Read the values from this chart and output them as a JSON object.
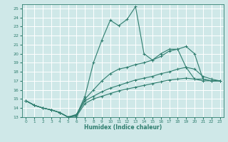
{
  "xlabel": "Humidex (Indice chaleur)",
  "xlim": [
    -0.5,
    23.5
  ],
  "ylim": [
    13,
    25.5
  ],
  "xticks": [
    0,
    1,
    2,
    3,
    4,
    5,
    6,
    7,
    8,
    9,
    10,
    11,
    12,
    13,
    14,
    15,
    16,
    17,
    18,
    19,
    20,
    21,
    22,
    23
  ],
  "yticks": [
    13,
    14,
    15,
    16,
    17,
    18,
    19,
    20,
    21,
    22,
    23,
    24,
    25
  ],
  "background_color": "#cfe8e8",
  "grid_color": "#b0d0d0",
  "line_color": "#2e7d6e",
  "lines": [
    {
      "x": [
        0,
        1,
        2,
        3,
        4,
        5,
        6,
        7,
        8,
        9,
        10,
        11,
        12,
        13,
        14,
        15,
        16,
        17,
        18,
        19,
        20,
        21,
        22,
        23
      ],
      "y": [
        14.8,
        14.3,
        14.0,
        13.8,
        13.5,
        13.0,
        13.2,
        15.3,
        19.0,
        21.5,
        23.7,
        23.1,
        23.8,
        25.2,
        20.0,
        19.3,
        20.0,
        20.5,
        20.5,
        20.8,
        20.0,
        17.2,
        17.0,
        17.0
      ]
    },
    {
      "x": [
        0,
        1,
        2,
        3,
        4,
        5,
        6,
        7,
        8,
        9,
        10,
        11,
        12,
        13,
        14,
        15,
        16,
        17,
        18,
        19,
        20,
        21,
        22,
        23
      ],
      "y": [
        14.8,
        14.3,
        14.0,
        13.8,
        13.5,
        13.0,
        13.3,
        15.0,
        16.0,
        17.0,
        17.8,
        18.3,
        18.5,
        18.8,
        19.0,
        19.3,
        19.7,
        20.3,
        20.5,
        18.5,
        17.2,
        17.2,
        17.0,
        17.0
      ]
    },
    {
      "x": [
        0,
        1,
        2,
        3,
        4,
        5,
        6,
        7,
        8,
        9,
        10,
        11,
        12,
        13,
        14,
        15,
        16,
        17,
        18,
        19,
        20,
        21,
        22,
        23
      ],
      "y": [
        14.8,
        14.3,
        14.0,
        13.8,
        13.5,
        13.0,
        13.2,
        14.8,
        15.3,
        15.8,
        16.2,
        16.5,
        16.8,
        17.1,
        17.3,
        17.5,
        17.8,
        18.0,
        18.3,
        18.5,
        18.3,
        17.5,
        17.2,
        17.0
      ]
    },
    {
      "x": [
        0,
        1,
        2,
        3,
        4,
        5,
        6,
        7,
        8,
        9,
        10,
        11,
        12,
        13,
        14,
        15,
        16,
        17,
        18,
        19,
        20,
        21,
        22,
        23
      ],
      "y": [
        14.8,
        14.3,
        14.0,
        13.8,
        13.5,
        13.0,
        13.1,
        14.5,
        15.0,
        15.3,
        15.6,
        15.9,
        16.1,
        16.3,
        16.5,
        16.7,
        16.9,
        17.1,
        17.2,
        17.3,
        17.2,
        17.0,
        17.0,
        17.0
      ]
    }
  ]
}
